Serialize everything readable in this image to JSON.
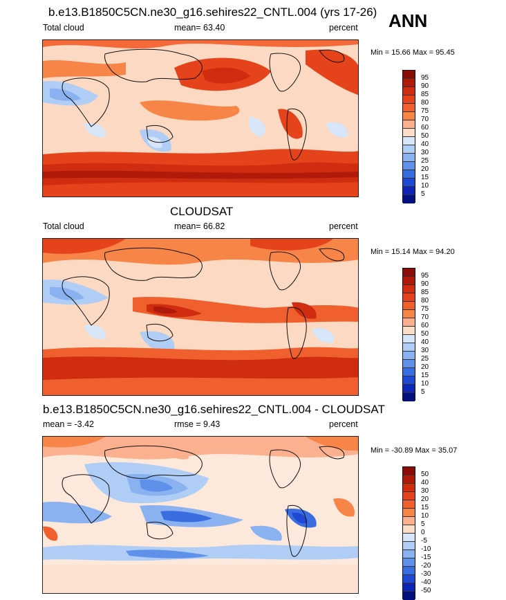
{
  "season": "ANN",
  "panels": [
    {
      "title": "b.e13.B1850C5CN.ne30_g16.sehires22_CNTL.004 (yrs 17-26)",
      "left_label": "Total cloud",
      "center_label": "mean=  63.40",
      "right_label": "percent",
      "minmax": "Min =  15.66 Max =  95.45",
      "colorbar": {
        "labels": [
          "95",
          "90",
          "85",
          "80",
          "75",
          "70",
          "60",
          "50",
          "40",
          "30",
          "25",
          "20",
          "15",
          "10",
          "5"
        ],
        "colors": [
          "#8a0c06",
          "#b01a0a",
          "#cf2c10",
          "#e5431c",
          "#f0602e",
          "#f88548",
          "#fbb190",
          "#fcddc8",
          "#d8e6fa",
          "#b0cdf5",
          "#8ab2f0",
          "#5f90ea",
          "#3a6ee0",
          "#1f49d4",
          "#0e25b8",
          "#051080"
        ]
      }
    },
    {
      "title": "CLOUDSAT",
      "left_label": "Total cloud",
      "center_label": "mean=  66.82",
      "right_label": "percent",
      "minmax": "Min =  15.14 Max =  94.20",
      "colorbar": {
        "labels": [
          "95",
          "90",
          "85",
          "80",
          "75",
          "70",
          "60",
          "50",
          "40",
          "30",
          "25",
          "20",
          "15",
          "10",
          "5"
        ],
        "colors": [
          "#8a0c06",
          "#b01a0a",
          "#cf2c10",
          "#e5431c",
          "#f0602e",
          "#f88548",
          "#fbb190",
          "#fcddc8",
          "#d8e6fa",
          "#b0cdf5",
          "#8ab2f0",
          "#5f90ea",
          "#3a6ee0",
          "#1f49d4",
          "#0e25b8",
          "#051080"
        ]
      }
    },
    {
      "title": "b.e13.B1850C5CN.ne30_g16.sehires22_CNTL.004 - CLOUDSAT",
      "left_label": "mean =  -3.42",
      "center_label": "rmse =   9.43",
      "right_label": "percent",
      "minmax": "Min = -30.89 Max =  35.07",
      "colorbar": {
        "labels": [
          "50",
          "40",
          "30",
          "20",
          "15",
          "10",
          "5",
          "0",
          "-5",
          "-10",
          "-15",
          "-20",
          "-30",
          "-40",
          "-50"
        ],
        "colors": [
          "#8a0c06",
          "#b01a0a",
          "#cf2c10",
          "#e5431c",
          "#f0602e",
          "#f88548",
          "#fbb190",
          "#fcddc8",
          "#d8e6fa",
          "#b0cdf5",
          "#8ab2f0",
          "#5f90ea",
          "#3a6ee0",
          "#1f49d4",
          "#0e25b8",
          "#051080"
        ]
      }
    }
  ]
}
